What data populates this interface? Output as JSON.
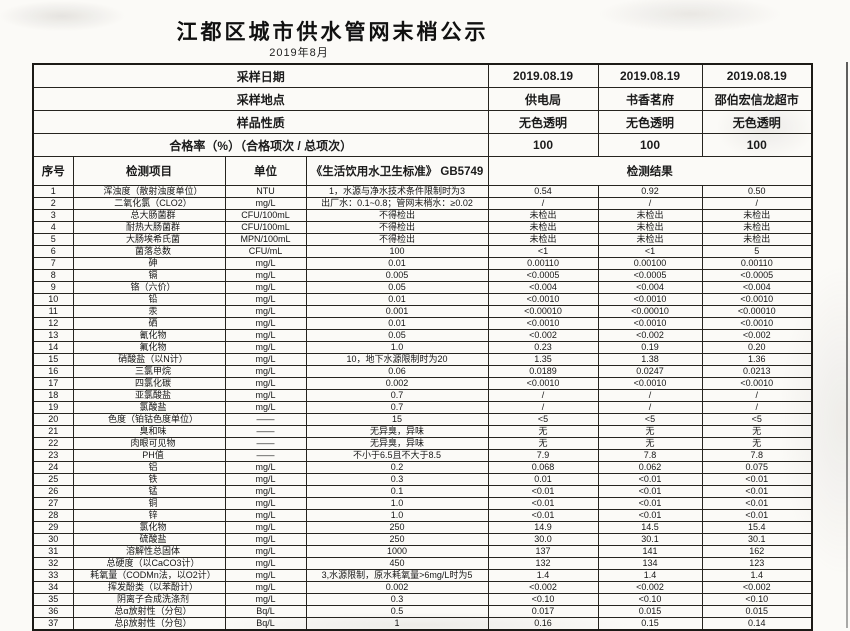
{
  "title": "江都区城市供水管网末梢公示",
  "subtitle": "2019年8月",
  "meta": {
    "sampling_date_label": "采样日期",
    "sampling_dates": [
      "2019.08.19",
      "2019.08.19",
      "2019.08.19"
    ],
    "location_label": "采样地点",
    "locations": [
      "供电局",
      "书香茗府",
      "邵伯宏信龙超市"
    ],
    "sample_nature_label": "样品性质",
    "sample_natures": [
      "无色透明",
      "无色透明",
      "无色透明"
    ],
    "pass_rate_label": "合格率（%）（合格项次 / 总项次）",
    "pass_rates": [
      "100",
      "100",
      "100"
    ]
  },
  "columns": {
    "no": "序号",
    "item": "检测项目",
    "unit": "单位",
    "standard": "《生活饮用水卫生标准》 GB5749",
    "result": "检测结果"
  },
  "rows": [
    {
      "no": "1",
      "item": "浑浊度（散射浊度单位）",
      "unit": "NTU",
      "standard": "1，水源与净水技术条件限制时为3",
      "r1": "0.54",
      "r2": "0.92",
      "r3": "0.50"
    },
    {
      "no": "2",
      "item": "二氧化氯（CLO2）",
      "unit": "mg/L",
      "standard": "出厂水：0.1~0.8；管网末梢水：≥0.02",
      "r1": "/",
      "r2": "/",
      "r3": "/"
    },
    {
      "no": "3",
      "item": "总大肠菌群",
      "unit": "CFU/100mL",
      "standard": "不得检出",
      "r1": "未检出",
      "r2": "未检出",
      "r3": "未检出"
    },
    {
      "no": "4",
      "item": "耐热大肠菌群",
      "unit": "CFU/100mL",
      "standard": "不得检出",
      "r1": "未检出",
      "r2": "未检出",
      "r3": "未检出"
    },
    {
      "no": "5",
      "item": "大肠埃希氏菌",
      "unit": "MPN/100mL",
      "standard": "不得检出",
      "r1": "未检出",
      "r2": "未检出",
      "r3": "未检出"
    },
    {
      "no": "6",
      "item": "菌落总数",
      "unit": "CFU/mL",
      "standard": "100",
      "r1": "<1",
      "r2": "<1",
      "r3": "5"
    },
    {
      "no": "7",
      "item": "砷",
      "unit": "mg/L",
      "standard": "0.01",
      "r1": "0.00110",
      "r2": "0.00100",
      "r3": "0.00110"
    },
    {
      "no": "8",
      "item": "镉",
      "unit": "mg/L",
      "standard": "0.005",
      "r1": "<0.0005",
      "r2": "<0.0005",
      "r3": "<0.0005"
    },
    {
      "no": "9",
      "item": "铬（六价）",
      "unit": "mg/L",
      "standard": "0.05",
      "r1": "<0.004",
      "r2": "<0.004",
      "r3": "<0.004"
    },
    {
      "no": "10",
      "item": "铅",
      "unit": "mg/L",
      "standard": "0.01",
      "r1": "<0.0010",
      "r2": "<0.0010",
      "r3": "<0.0010"
    },
    {
      "no": "11",
      "item": "汞",
      "unit": "mg/L",
      "standard": "0.001",
      "r1": "<0.00010",
      "r2": "<0.00010",
      "r3": "<0.00010"
    },
    {
      "no": "12",
      "item": "硒",
      "unit": "mg/L",
      "standard": "0.01",
      "r1": "<0.0010",
      "r2": "<0.0010",
      "r3": "<0.0010"
    },
    {
      "no": "13",
      "item": "氰化物",
      "unit": "mg/L",
      "standard": "0.05",
      "r1": "<0.002",
      "r2": "<0.002",
      "r3": "<0.002"
    },
    {
      "no": "14",
      "item": "氟化物",
      "unit": "mg/L",
      "standard": "1.0",
      "r1": "0.23",
      "r2": "0.19",
      "r3": "0.20"
    },
    {
      "no": "15",
      "item": "硝酸盐（以N计）",
      "unit": "mg/L",
      "standard": "10，地下水源限制时为20",
      "r1": "1.35",
      "r2": "1.38",
      "r3": "1.36"
    },
    {
      "no": "16",
      "item": "三氯甲烷",
      "unit": "mg/L",
      "standard": "0.06",
      "r1": "0.0189",
      "r2": "0.0247",
      "r3": "0.0213"
    },
    {
      "no": "17",
      "item": "四氯化碳",
      "unit": "mg/L",
      "standard": "0.002",
      "r1": "<0.0010",
      "r2": "<0.0010",
      "r3": "<0.0010"
    },
    {
      "no": "18",
      "item": "亚氯酸盐",
      "unit": "mg/L",
      "standard": "0.7",
      "r1": "/",
      "r2": "/",
      "r3": "/"
    },
    {
      "no": "19",
      "item": "氯酸盐",
      "unit": "mg/L",
      "standard": "0.7",
      "r1": "/",
      "r2": "/",
      "r3": "/"
    },
    {
      "no": "20",
      "item": "色度（铂钴色度单位）",
      "unit": "——",
      "standard": "15",
      "r1": "<5",
      "r2": "<5",
      "r3": "<5"
    },
    {
      "no": "21",
      "item": "臭和味",
      "unit": "——",
      "standard": "无异臭，异味",
      "r1": "无",
      "r2": "无",
      "r3": "无"
    },
    {
      "no": "22",
      "item": "肉眼可见物",
      "unit": "——",
      "standard": "无异臭，异味",
      "r1": "无",
      "r2": "无",
      "r3": "无"
    },
    {
      "no": "23",
      "item": "PH值",
      "unit": "——",
      "standard": "不小于6.5且不大于8.5",
      "r1": "7.9",
      "r2": "7.8",
      "r3": "7.8"
    },
    {
      "no": "24",
      "item": "铝",
      "unit": "mg/L",
      "standard": "0.2",
      "r1": "0.068",
      "r2": "0.062",
      "r3": "0.075"
    },
    {
      "no": "25",
      "item": "铁",
      "unit": "mg/L",
      "standard": "0.3",
      "r1": "0.01",
      "r2": "<0.01",
      "r3": "<0.01"
    },
    {
      "no": "26",
      "item": "锰",
      "unit": "mg/L",
      "standard": "0.1",
      "r1": "<0.01",
      "r2": "<0.01",
      "r3": "<0.01"
    },
    {
      "no": "27",
      "item": "铜",
      "unit": "mg/L",
      "standard": "1.0",
      "r1": "<0.01",
      "r2": "<0.01",
      "r3": "<0.01"
    },
    {
      "no": "28",
      "item": "锌",
      "unit": "mg/L",
      "standard": "1.0",
      "r1": "<0.01",
      "r2": "<0.01",
      "r3": "<0.01"
    },
    {
      "no": "29",
      "item": "氯化物",
      "unit": "mg/L",
      "standard": "250",
      "r1": "14.9",
      "r2": "14.5",
      "r3": "15.4"
    },
    {
      "no": "30",
      "item": "硫酸盐",
      "unit": "mg/L",
      "standard": "250",
      "r1": "30.0",
      "r2": "30.1",
      "r3": "30.1"
    },
    {
      "no": "31",
      "item": "溶解性总固体",
      "unit": "mg/L",
      "standard": "1000",
      "r1": "137",
      "r2": "141",
      "r3": "162"
    },
    {
      "no": "32",
      "item": "总硬度（以CaCO3计）",
      "unit": "mg/L",
      "standard": "450",
      "r1": "132",
      "r2": "134",
      "r3": "123"
    },
    {
      "no": "33",
      "item": "耗氧量（CODMn法，以O2计）",
      "unit": "mg/L",
      "standard": "3,水源限制，原水耗氧量>6mg/L时为5",
      "r1": "1.4",
      "r2": "1.4",
      "r3": "1.4"
    },
    {
      "no": "34",
      "item": "挥发酚类（以苯酚计）",
      "unit": "mg/L",
      "standard": "0.002",
      "r1": "<0.002",
      "r2": "<0.002",
      "r3": "<0.002"
    },
    {
      "no": "35",
      "item": "阴离子合成洗涤剂",
      "unit": "mg/L",
      "standard": "0.3",
      "r1": "<0.10",
      "r2": "<0.10",
      "r3": "<0.10"
    },
    {
      "no": "36",
      "item": "总α放射性（分包）",
      "unit": "Bq/L",
      "standard": "0.5",
      "r1": "0.017",
      "r2": "0.015",
      "r3": "0.015"
    },
    {
      "no": "37",
      "item": "总β放射性（分包）",
      "unit": "Bq/L",
      "standard": "1",
      "r1": "0.16",
      "r2": "0.15",
      "r3": "0.14"
    }
  ]
}
